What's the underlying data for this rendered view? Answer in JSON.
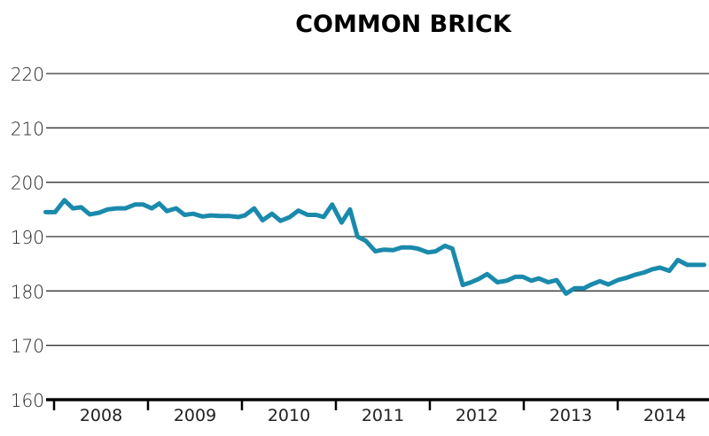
{
  "chart_data": {
    "type": "line",
    "title": "COMMON BRICK",
    "xlabel": "",
    "ylabel": "",
    "ylim": [
      160,
      220
    ],
    "yticks": [
      160,
      170,
      180,
      190,
      200,
      210,
      220
    ],
    "xlim": [
      2007.9,
      2014.95
    ],
    "xticks": [
      "2008",
      "2009",
      "2010",
      "2011",
      "2012",
      "2013",
      "2014"
    ],
    "grid": "horizontal",
    "line_color": "#1a8aac",
    "series": [
      {
        "x": [
          2007.91,
          2008.01,
          2008.11,
          2008.2,
          2008.29,
          2008.38,
          2008.48,
          2008.57,
          2008.67,
          2008.76,
          2008.86,
          2008.95,
          2009.04,
          2009.12,
          2009.2,
          2009.3,
          2009.39,
          2009.48,
          2009.58,
          2009.67,
          2009.77,
          2009.86,
          2009.96,
          2010.03,
          2010.13,
          2010.22,
          2010.32,
          2010.41,
          2010.51,
          2010.6,
          2010.7,
          2010.79,
          2010.87,
          2010.96,
          2011.06,
          2011.15,
          2011.23,
          2011.32,
          2011.42,
          2011.51,
          2011.61,
          2011.7,
          2011.8,
          2011.87,
          2011.98,
          2012.06,
          2012.16,
          2012.24,
          2012.35,
          2012.44,
          2012.52,
          2012.61,
          2012.72,
          2012.82,
          2012.91,
          2012.99,
          2013.08,
          2013.16,
          2013.26,
          2013.35,
          2013.45,
          2013.54,
          2013.64,
          2013.72,
          2013.81,
          2013.9,
          2014.0,
          2014.09,
          2014.19,
          2014.28,
          2014.37,
          2014.45,
          2014.55,
          2014.64,
          2014.74,
          2014.83,
          2014.92
        ],
        "values": [
          194.5,
          194.5,
          196.7,
          195.2,
          195.4,
          194.1,
          194.4,
          195.0,
          195.2,
          195.2,
          195.9,
          195.9,
          195.2,
          196.1,
          194.7,
          195.2,
          194.0,
          194.2,
          193.7,
          193.9,
          193.8,
          193.8,
          193.6,
          193.9,
          195.2,
          193.0,
          194.2,
          192.9,
          193.6,
          194.8,
          194.0,
          194.0,
          193.6,
          195.9,
          192.6,
          195.0,
          190.0,
          189.2,
          187.3,
          187.6,
          187.5,
          188.0,
          188.0,
          187.8,
          187.1,
          187.3,
          188.3,
          187.8,
          181.1,
          181.6,
          182.2,
          183.1,
          181.6,
          181.9,
          182.6,
          182.6,
          181.9,
          182.3,
          181.6,
          182.0,
          179.5,
          180.5,
          180.5,
          181.2,
          181.8,
          181.2,
          182.0,
          182.4,
          183.0,
          183.4,
          184.0,
          184.3,
          183.7,
          185.7,
          184.8,
          184.8,
          184.8
        ]
      }
    ]
  }
}
